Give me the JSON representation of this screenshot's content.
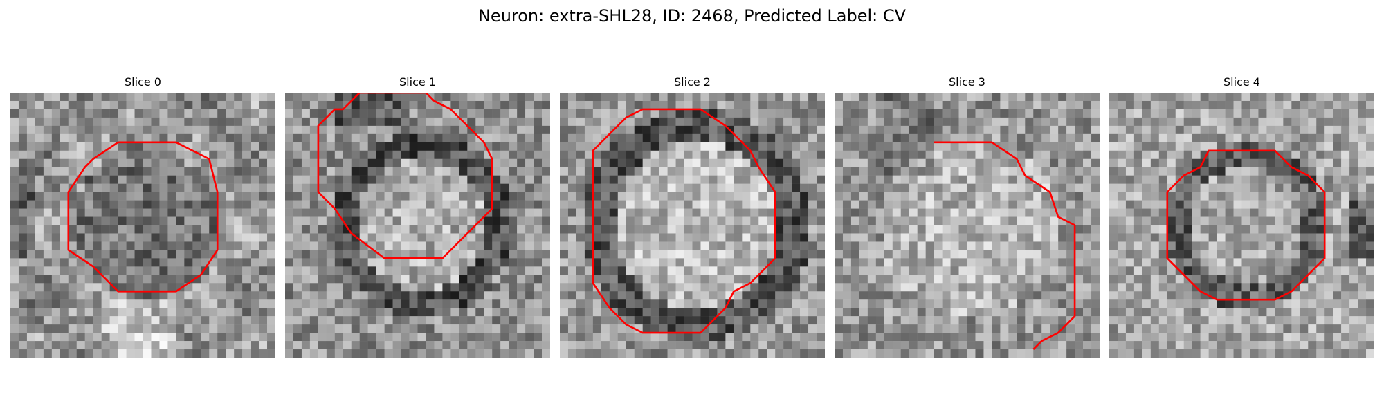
{
  "figure": {
    "title": "Neuron: extra-SHL28, ID: 2468, Predicted Label: CV"
  },
  "colors": {
    "contour": "#ff0000",
    "background": "#ffffff"
  },
  "grid_size": 32,
  "panels": [
    {
      "title": "Slice 0",
      "seed": 11,
      "texture": "dark-center",
      "contour": [
        [
          13,
          6
        ],
        [
          20,
          6
        ],
        [
          24,
          8
        ],
        [
          25,
          12
        ],
        [
          25,
          19
        ],
        [
          23,
          22
        ],
        [
          20,
          24
        ],
        [
          13,
          24
        ],
        [
          10,
          21
        ],
        [
          7,
          19
        ],
        [
          7,
          12
        ],
        [
          9,
          9
        ],
        [
          10,
          8
        ]
      ]
    },
    {
      "title": "Slice 1",
      "seed": 23,
      "texture": "ring",
      "contour": [
        [
          9,
          0
        ],
        [
          7,
          2
        ],
        [
          6,
          2
        ],
        [
          4,
          4
        ],
        [
          4,
          12
        ],
        [
          6,
          14
        ],
        [
          8,
          17
        ],
        [
          12,
          20
        ],
        [
          19,
          20
        ],
        [
          21,
          18
        ],
        [
          23,
          16
        ],
        [
          25,
          14
        ],
        [
          25,
          8
        ],
        [
          24,
          6
        ],
        [
          22,
          4
        ],
        [
          20,
          2
        ],
        [
          18,
          1
        ],
        [
          17,
          0
        ]
      ]
    },
    {
      "title": "Slice 2",
      "seed": 37,
      "texture": "bright-ring",
      "contour": [
        [
          10,
          2
        ],
        [
          17,
          2
        ],
        [
          20,
          4
        ],
        [
          23,
          7
        ],
        [
          24,
          9
        ],
        [
          26,
          12
        ],
        [
          26,
          20
        ],
        [
          24,
          22
        ],
        [
          23,
          23
        ],
        [
          21,
          24
        ],
        [
          20,
          26
        ],
        [
          18,
          28
        ],
        [
          17,
          29
        ],
        [
          10,
          29
        ],
        [
          8,
          28
        ],
        [
          6,
          26
        ],
        [
          4,
          23
        ],
        [
          4,
          7
        ],
        [
          6,
          5
        ],
        [
          7,
          4
        ],
        [
          8,
          3
        ]
      ]
    },
    {
      "title": "Slice 3",
      "seed": 41,
      "texture": "bright-center",
      "contour": [
        [
          12,
          6
        ],
        [
          19,
          6
        ],
        [
          22,
          8
        ],
        [
          23,
          10
        ],
        [
          26,
          12
        ],
        [
          27,
          15
        ],
        [
          29,
          16
        ],
        [
          29,
          27
        ],
        [
          27,
          29
        ],
        [
          25,
          30
        ],
        [
          24,
          31
        ]
      ]
    },
    {
      "title": "Slice 4",
      "seed": 53,
      "texture": "ring-soft",
      "contour": [
        [
          12,
          7
        ],
        [
          20,
          7
        ],
        [
          22,
          9
        ],
        [
          24,
          10
        ],
        [
          26,
          12
        ],
        [
          26,
          20
        ],
        [
          24,
          22
        ],
        [
          22,
          24
        ],
        [
          20,
          25
        ],
        [
          13,
          25
        ],
        [
          11,
          24
        ],
        [
          9,
          22
        ],
        [
          7,
          20
        ],
        [
          7,
          12
        ],
        [
          9,
          10
        ],
        [
          11,
          9
        ]
      ]
    }
  ]
}
